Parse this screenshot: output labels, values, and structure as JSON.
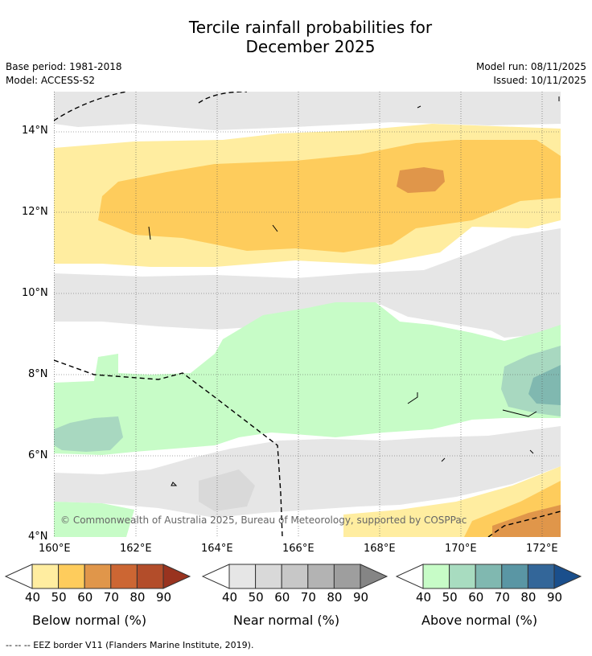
{
  "title_line1": "Tercile rainfall probabilities for",
  "title_line2": "December 2025",
  "base_period": "Base period: 1981-2018",
  "model": "Model: ACCESS-S2",
  "model_run": "Model run: 08/11/2025",
  "issued": "Issued: 10/11/2025",
  "lat_ticks": [
    "14°N",
    "12°N",
    "10°N",
    "8°N",
    "6°N",
    "4°N"
  ],
  "lon_ticks": [
    "160°E",
    "162°E",
    "164°E",
    "166°E",
    "168°E",
    "170°E",
    "172°E"
  ],
  "copyright": "© Commonwealth of Australia 2025, Bureau of Meteorology, supported by COSPPac",
  "footnote": "-- -- -- EEZ border V11 (Flanders Marine Institute, 2019).",
  "colorbars": [
    {
      "label": "Below normal (%)",
      "ticks": [
        "40",
        "50",
        "60",
        "70",
        "80",
        "90"
      ],
      "colors": [
        "#ffeda0",
        "#fecc5c",
        "#e0964a",
        "#cc6633",
        "#b34d2a",
        "#99331f"
      ]
    },
    {
      "label": "Near normal (%)",
      "ticks": [
        "40",
        "50",
        "60",
        "70",
        "80",
        "90"
      ],
      "colors": [
        "#e6e6e6",
        "#d9d9d9",
        "#c7c7c7",
        "#b3b3b3",
        "#9e9e9e",
        "#858585"
      ]
    },
    {
      "label": "Above normal (%)",
      "ticks": [
        "40",
        "50",
        "60",
        "70",
        "80",
        "90"
      ],
      "colors": [
        "#c7fcc7",
        "#a8dcc0",
        "#80b8b0",
        "#5a96a4",
        "#336699",
        "#1a4f8c"
      ]
    }
  ],
  "colors": {
    "below_40": "#ffeda0",
    "below_50": "#fecc5c",
    "below_60": "#e0964a",
    "near_40": "#e6e6e6",
    "near_50": "#d9d9d9",
    "above_40": "#c7fcc7",
    "above_50": "#a8d8c0",
    "above_60": "#80b8b0",
    "above_70": "#6a9aa8"
  }
}
